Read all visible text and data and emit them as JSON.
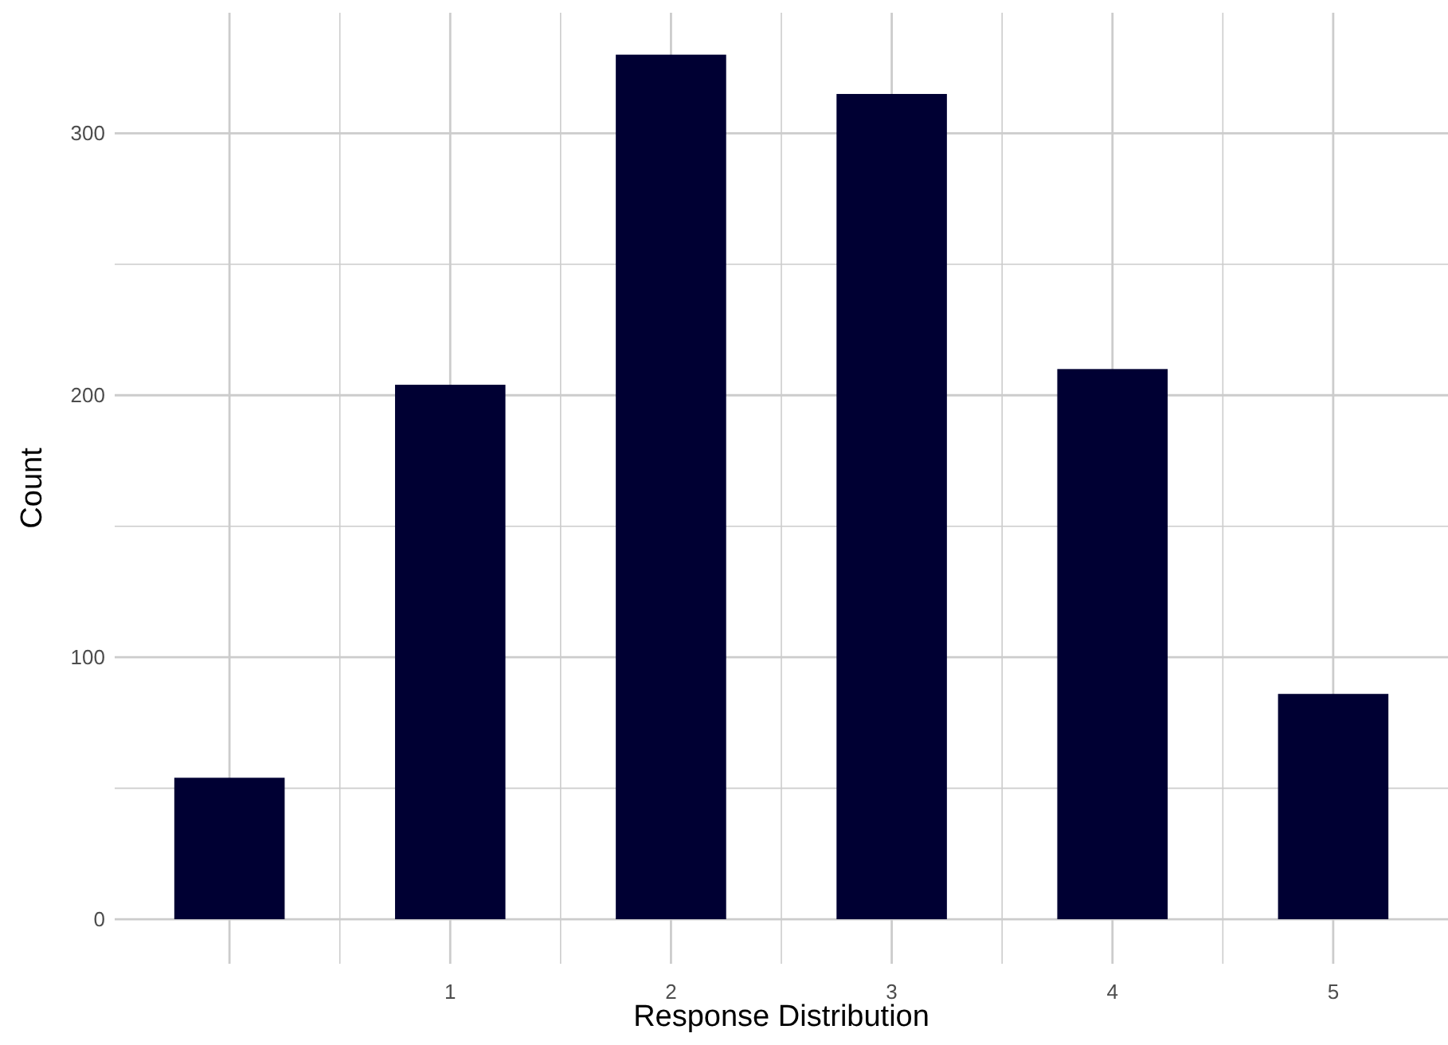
{
  "chart_data": {
    "type": "bar",
    "xlabel": "Response Distribution",
    "ylabel": "Count",
    "categories": [
      null,
      "1",
      "2",
      "3",
      "4",
      "5"
    ],
    "values": [
      54,
      204,
      330,
      315,
      210,
      86
    ],
    "color": "#000033",
    "ylim": [
      -17,
      346
    ],
    "yticks": [
      0,
      100,
      200,
      300
    ],
    "grid": true
  }
}
